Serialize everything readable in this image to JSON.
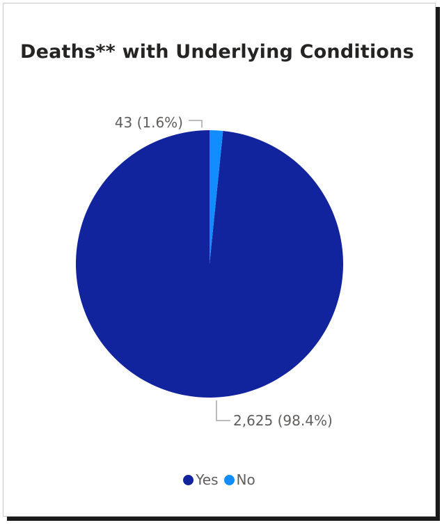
{
  "chart_data": {
    "type": "pie",
    "title": "Deaths** with Underlying Conditions",
    "categories": [
      "Yes",
      "No"
    ],
    "values": [
      2625,
      43
    ],
    "percentages": [
      98.4,
      1.6
    ],
    "data_labels": [
      "2,625 (98.4%)",
      "43 (1.6%)"
    ],
    "colors": [
      "#12239E",
      "#118DFF"
    ],
    "legend": {
      "position": "bottom-center",
      "entries": [
        "Yes",
        "No"
      ]
    }
  }
}
